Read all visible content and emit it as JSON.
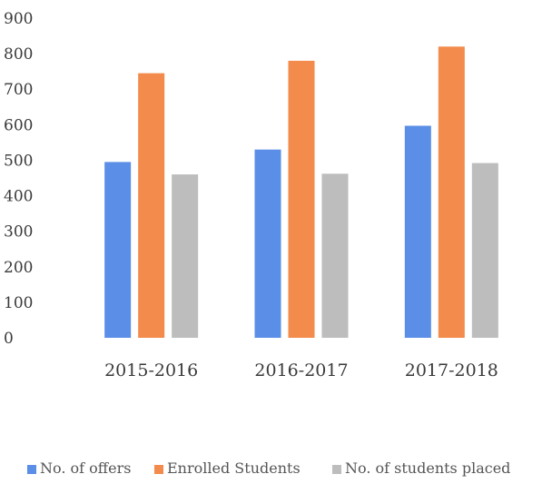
{
  "chart_data": {
    "type": "bar",
    "categories": [
      "2015-2016",
      "2016-2017",
      "2017-2018"
    ],
    "series": [
      {
        "name": "No. of offers",
        "color": "#5b8ee6",
        "values": [
          495,
          530,
          597
        ]
      },
      {
        "name": "Enrolled Students",
        "color": "#f28b4c",
        "values": [
          745,
          780,
          820
        ]
      },
      {
        "name": "No. of students placed",
        "color": "#bdbdbd",
        "values": [
          460,
          462,
          492
        ]
      }
    ],
    "yticks": [
      "0",
      "100",
      "200",
      "300",
      "400",
      "500",
      "600",
      "700",
      "800",
      "900"
    ],
    "ylim": [
      0,
      900
    ],
    "grid": false,
    "legend_position": "bottom",
    "title": "",
    "xlabel": "",
    "ylabel": ""
  }
}
